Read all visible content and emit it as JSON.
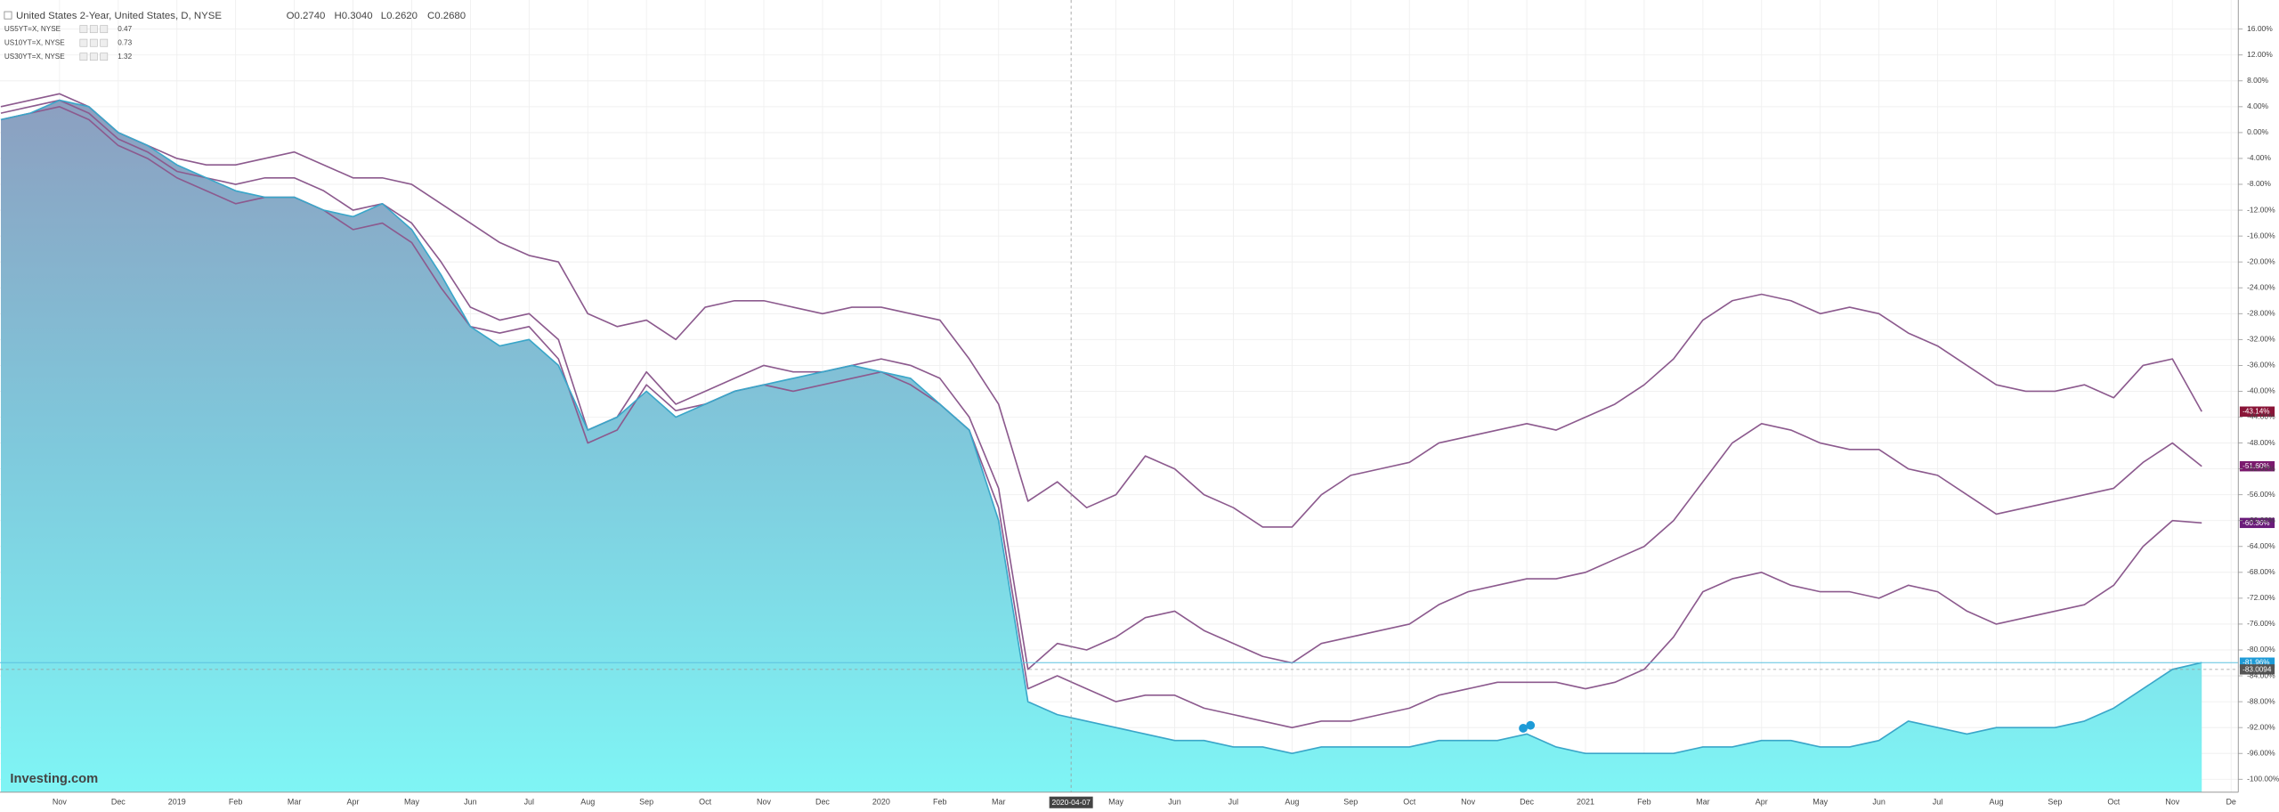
{
  "chart_data": {
    "type": "line",
    "legend": {
      "title": "United States 2-Year, United States, D, NYSE",
      "ohlc": [
        "O0.2740",
        "H0.3040",
        "L0.2620",
        "C0.2680"
      ]
    },
    "logo": "Investing.com",
    "crosshair": {
      "x_label": "2020-04-07",
      "y_value": -83.0094
    },
    "categories": [
      null,
      null,
      "Nov",
      null,
      "Dec",
      null,
      "2019",
      null,
      "Feb",
      null,
      "Mar",
      null,
      "Apr",
      null,
      "May",
      null,
      "Jun",
      null,
      "Jul",
      null,
      "Aug",
      null,
      "Sep",
      null,
      "Oct",
      null,
      "Nov",
      null,
      "Dec",
      null,
      "2020",
      null,
      "Feb",
      null,
      "Mar",
      null,
      null,
      null,
      "May",
      null,
      "Jun",
      null,
      "Jul",
      null,
      "Aug",
      null,
      "Sep",
      null,
      "Oct",
      null,
      "Nov",
      null,
      "Dec",
      null,
      "2021",
      null,
      "Feb",
      null,
      "Mar",
      null,
      "Apr",
      null,
      "May",
      null,
      "Jun",
      null,
      "Jul",
      null,
      "Aug",
      null,
      "Sep",
      null,
      "Oct",
      null,
      "Nov",
      null,
      "De"
    ],
    "ylim": [
      -102,
      20.5
    ],
    "yticks": [
      {
        "value": 16,
        "label": "16.00%"
      },
      {
        "value": 12,
        "label": "12.00%"
      },
      {
        "value": 8,
        "label": "8.00%"
      },
      {
        "value": 4,
        "label": "4.00%"
      },
      {
        "value": 0,
        "label": "0.00%"
      },
      {
        "value": -4,
        "label": "-4.00%"
      },
      {
        "value": -8,
        "label": "-8.00%"
      },
      {
        "value": -12,
        "label": "-12.00%"
      },
      {
        "value": -16,
        "label": "-16.00%"
      },
      {
        "value": -20,
        "label": "-20.00%"
      },
      {
        "value": -24,
        "label": "-24.00%"
      },
      {
        "value": -28,
        "label": "-28.00%"
      },
      {
        "value": -32,
        "label": "-32.00%"
      },
      {
        "value": -36,
        "label": "-36.00%"
      },
      {
        "value": -40,
        "label": "-40.00%"
      },
      {
        "value": -44,
        "label": "-44.00%"
      },
      {
        "value": -48,
        "label": "-48.00%"
      },
      {
        "value": -52,
        "label": "-52.00%"
      },
      {
        "value": -56,
        "label": "-56.00%"
      },
      {
        "value": -60,
        "label": "-60.00%"
      },
      {
        "value": -64,
        "label": "-64.00%"
      },
      {
        "value": -68,
        "label": "-68.00%"
      },
      {
        "value": -72,
        "label": "-72.00%"
      },
      {
        "value": -76,
        "label": "-76.00%"
      },
      {
        "value": -80,
        "label": "-80.00%"
      },
      {
        "value": -84,
        "label": "-84.00%"
      },
      {
        "value": -88,
        "label": "-88.00%"
      },
      {
        "value": -92,
        "label": "-92.00%"
      },
      {
        "value": -96,
        "label": "-96.00%"
      },
      {
        "value": -100,
        "label": "-100.00%"
      }
    ],
    "grid": true,
    "series": [
      {
        "name": "United States 2-Year, United States, D, NYSE",
        "fill": true,
        "color": "#3aa6c9",
        "label_color": "#1e9bd7",
        "last_label": "-81.96%",
        "values": [
          2,
          3,
          5,
          4,
          0,
          -2,
          -5,
          -7,
          -9,
          -10,
          -10,
          -12,
          -13,
          -11,
          -15,
          -22,
          -30,
          -33,
          -32,
          -36,
          -46,
          -44,
          -40,
          -44,
          -42,
          -40,
          -39,
          -38,
          -37,
          -36,
          -37,
          -38,
          -42,
          -46,
          -60,
          -88,
          -90,
          -91,
          -92,
          -93,
          -94,
          -94,
          -95,
          -95,
          -96,
          -95,
          -95,
          -95,
          -95,
          -94,
          -94,
          -94,
          -93,
          -95,
          -96,
          -96,
          -96,
          -96,
          -95,
          -95,
          -94,
          -94,
          -95,
          -95,
          -94,
          -91,
          -92,
          -93,
          -92,
          -92,
          -92,
          -91,
          -89,
          -86,
          -83,
          -81.96,
          null
        ]
      },
      {
        "name": "US5YT=X, NYSE",
        "legend_value": "0.47",
        "fill": false,
        "color": "#8c5a8e",
        "label_color": "#6a1b7a",
        "last_label": "-60.36%",
        "values": [
          2,
          3,
          4,
          2,
          -2,
          -4,
          -7,
          -9,
          -11,
          -10,
          -10,
          -12,
          -15,
          -14,
          -17,
          -24,
          -30,
          -31,
          -30,
          -35,
          -48,
          -46,
          -39,
          -43,
          -42,
          -40,
          -39,
          -40,
          -39,
          -38,
          -37,
          -39,
          -42,
          -46,
          -58,
          -86,
          -84,
          -86,
          -88,
          -87,
          -87,
          -89,
          -90,
          -91,
          -92,
          -91,
          -91,
          -90,
          -89,
          -87,
          -86,
          -85,
          -85,
          -85,
          -86,
          -85,
          -83,
          -78,
          -71,
          -69,
          -68,
          -70,
          -71,
          -71,
          -72,
          -70,
          -71,
          -74,
          -76,
          -75,
          -74,
          -73,
          -70,
          -64,
          -60,
          -60.36,
          null
        ]
      },
      {
        "name": "US10YT=X, NYSE",
        "legend_value": "0.73",
        "fill": false,
        "color": "#8c5a8e",
        "label_color": "#7b1a6e",
        "last_label": "-51.60%",
        "values": [
          3,
          4,
          5,
          3,
          -1,
          -3,
          -6,
          -7,
          -8,
          -7,
          -7,
          -9,
          -12,
          -11,
          -14,
          -20,
          -27,
          -29,
          -28,
          -32,
          -46,
          -44,
          -37,
          -42,
          -40,
          -38,
          -36,
          -37,
          -37,
          -36,
          -35,
          -36,
          -38,
          -44,
          -55,
          -83,
          -79,
          -80,
          -78,
          -75,
          -74,
          -77,
          -79,
          -81,
          -82,
          -79,
          -78,
          -77,
          -76,
          -73,
          -71,
          -70,
          -69,
          -69,
          -68,
          -66,
          -64,
          -60,
          -54,
          -48,
          -45,
          -46,
          -48,
          -49,
          -49,
          -52,
          -53,
          -56,
          -59,
          -58,
          -57,
          -56,
          -55,
          -51,
          -48,
          -51.6,
          null
        ]
      },
      {
        "name": "US30YT=X, NYSE",
        "legend_value": "1.32",
        "fill": false,
        "color": "#8c5a8e",
        "label_color": "#8a1538",
        "last_label": "-43.14%",
        "values": [
          4,
          5,
          6,
          4,
          0,
          -2,
          -4,
          -5,
          -5,
          -4,
          -3,
          -5,
          -7,
          -7,
          -8,
          -11,
          -14,
          -17,
          -19,
          -20,
          -28,
          -30,
          -29,
          -32,
          -27,
          -26,
          -26,
          -27,
          -28,
          -27,
          -27,
          -28,
          -29,
          -35,
          -42,
          -57,
          -54,
          -58,
          -56,
          -50,
          -52,
          -56,
          -58,
          -61,
          -61,
          -56,
          -53,
          -52,
          -51,
          -48,
          -47,
          -46,
          -45,
          -46,
          -44,
          -42,
          -39,
          -35,
          -29,
          -26,
          -25,
          -26,
          -28,
          -27,
          -28,
          -31,
          -33,
          -36,
          -39,
          -40,
          -40,
          -39,
          -41,
          -36,
          -35,
          -43.14,
          null
        ]
      }
    ]
  }
}
